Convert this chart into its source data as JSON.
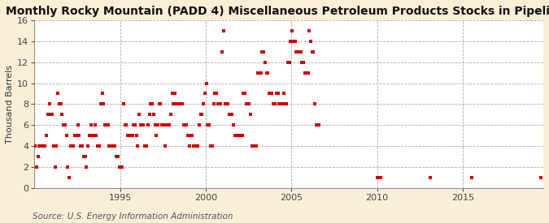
{
  "title": "Monthly Rocky Mountain (PADD 4) Miscellaneous Petroleum Products Stocks in Pipelines",
  "ylabel": "Thousand Barrels",
  "source": "Source: U.S. Energy Information Administration",
  "background_color": "#faefd6",
  "plot_background": "#ffffff",
  "marker_color": "#cc0000",
  "xlim": [
    1990.0,
    2019.7
  ],
  "ylim": [
    0,
    16
  ],
  "yticks": [
    0,
    2,
    4,
    6,
    8,
    10,
    12,
    14,
    16
  ],
  "xticks": [
    1995,
    2000,
    2005,
    2010,
    2015
  ],
  "grid_color": "#aaaaaa",
  "title_fontsize": 10,
  "label_fontsize": 8,
  "source_fontsize": 7.5,
  "marker_size": 12,
  "data_x": [
    1990.04,
    1990.12,
    1990.21,
    1990.29,
    1990.37,
    1990.46,
    1990.54,
    1990.62,
    1990.71,
    1990.79,
    1990.87,
    1990.96,
    1991.04,
    1991.12,
    1991.21,
    1991.29,
    1991.37,
    1991.46,
    1991.54,
    1991.62,
    1991.71,
    1991.79,
    1991.87,
    1991.96,
    1992.04,
    1992.12,
    1992.21,
    1992.29,
    1992.37,
    1992.46,
    1992.54,
    1992.62,
    1992.71,
    1992.79,
    1992.87,
    1992.96,
    1993.04,
    1993.12,
    1993.21,
    1993.29,
    1993.37,
    1993.46,
    1993.54,
    1993.62,
    1993.71,
    1993.79,
    1993.87,
    1993.96,
    1994.04,
    1994.12,
    1994.21,
    1994.29,
    1994.37,
    1994.46,
    1994.54,
    1994.62,
    1994.71,
    1994.79,
    1994.87,
    1994.96,
    1995.04,
    1995.12,
    1995.21,
    1995.29,
    1995.37,
    1995.46,
    1995.54,
    1995.62,
    1995.71,
    1995.79,
    1995.87,
    1995.96,
    1996.04,
    1996.12,
    1996.21,
    1996.29,
    1996.37,
    1996.46,
    1996.54,
    1996.62,
    1996.71,
    1996.79,
    1996.87,
    1996.96,
    1997.04,
    1997.12,
    1997.21,
    1997.29,
    1997.37,
    1997.46,
    1997.54,
    1997.62,
    1997.71,
    1997.79,
    1997.87,
    1997.96,
    1998.04,
    1998.12,
    1998.21,
    1998.29,
    1998.37,
    1998.46,
    1998.54,
    1998.62,
    1998.71,
    1998.79,
    1998.87,
    1998.96,
    1999.04,
    1999.12,
    1999.21,
    1999.29,
    1999.37,
    1999.46,
    1999.54,
    1999.62,
    1999.71,
    1999.79,
    1999.87,
    1999.96,
    2000.04,
    2000.12,
    2000.21,
    2000.29,
    2000.37,
    2000.46,
    2000.54,
    2000.62,
    2000.71,
    2000.79,
    2000.87,
    2000.96,
    2001.04,
    2001.12,
    2001.21,
    2001.29,
    2001.37,
    2001.46,
    2001.54,
    2001.62,
    2001.71,
    2001.79,
    2001.87,
    2001.96,
    2002.04,
    2002.12,
    2002.21,
    2002.29,
    2002.37,
    2002.46,
    2002.54,
    2002.62,
    2002.71,
    2002.79,
    2002.87,
    2002.96,
    2003.04,
    2003.12,
    2003.21,
    2003.29,
    2003.37,
    2003.46,
    2003.54,
    2003.62,
    2003.71,
    2003.79,
    2003.87,
    2003.96,
    2004.04,
    2004.12,
    2004.21,
    2004.29,
    2004.37,
    2004.46,
    2004.54,
    2004.62,
    2004.71,
    2004.79,
    2004.87,
    2004.96,
    2005.04,
    2005.12,
    2005.21,
    2005.29,
    2005.37,
    2005.46,
    2005.54,
    2005.62,
    2005.71,
    2005.79,
    2005.87,
    2005.96,
    2006.04,
    2006.12,
    2006.21,
    2006.29,
    2006.37,
    2006.46,
    2006.54,
    2006.62,
    2010.04,
    2010.12,
    2010.21,
    2013.12,
    2015.54,
    2019.54
  ],
  "data_y": [
    4,
    2,
    3,
    4,
    4,
    4,
    4,
    4,
    5,
    7,
    8,
    7,
    7,
    4,
    2,
    4,
    9,
    8,
    8,
    7,
    6,
    6,
    5,
    2,
    1,
    4,
    4,
    4,
    5,
    5,
    6,
    5,
    4,
    4,
    3,
    3,
    2,
    4,
    5,
    6,
    5,
    5,
    6,
    5,
    4,
    4,
    8,
    9,
    8,
    6,
    6,
    6,
    4,
    4,
    4,
    4,
    4,
    3,
    3,
    2,
    2,
    2,
    8,
    6,
    6,
    5,
    5,
    5,
    5,
    6,
    6,
    5,
    4,
    7,
    6,
    6,
    6,
    4,
    4,
    6,
    7,
    8,
    8,
    7,
    6,
    5,
    6,
    8,
    8,
    6,
    6,
    4,
    6,
    6,
    6,
    7,
    9,
    8,
    9,
    8,
    8,
    8,
    8,
    8,
    6,
    6,
    6,
    5,
    4,
    5,
    5,
    4,
    4,
    4,
    4,
    6,
    7,
    7,
    8,
    9,
    10,
    6,
    6,
    4,
    4,
    8,
    9,
    9,
    8,
    8,
    8,
    13,
    15,
    8,
    8,
    8,
    7,
    7,
    7,
    6,
    5,
    5,
    5,
    5,
    5,
    5,
    9,
    9,
    8,
    8,
    8,
    7,
    4,
    4,
    4,
    4,
    11,
    11,
    11,
    13,
    13,
    12,
    11,
    11,
    9,
    9,
    9,
    8,
    8,
    9,
    9,
    8,
    8,
    8,
    9,
    8,
    8,
    12,
    12,
    14,
    15,
    14,
    14,
    13,
    13,
    13,
    13,
    12,
    12,
    11,
    11,
    11,
    15,
    14,
    13,
    13,
    8,
    6,
    6,
    6,
    1,
    1,
    1,
    1,
    1,
    1
  ]
}
